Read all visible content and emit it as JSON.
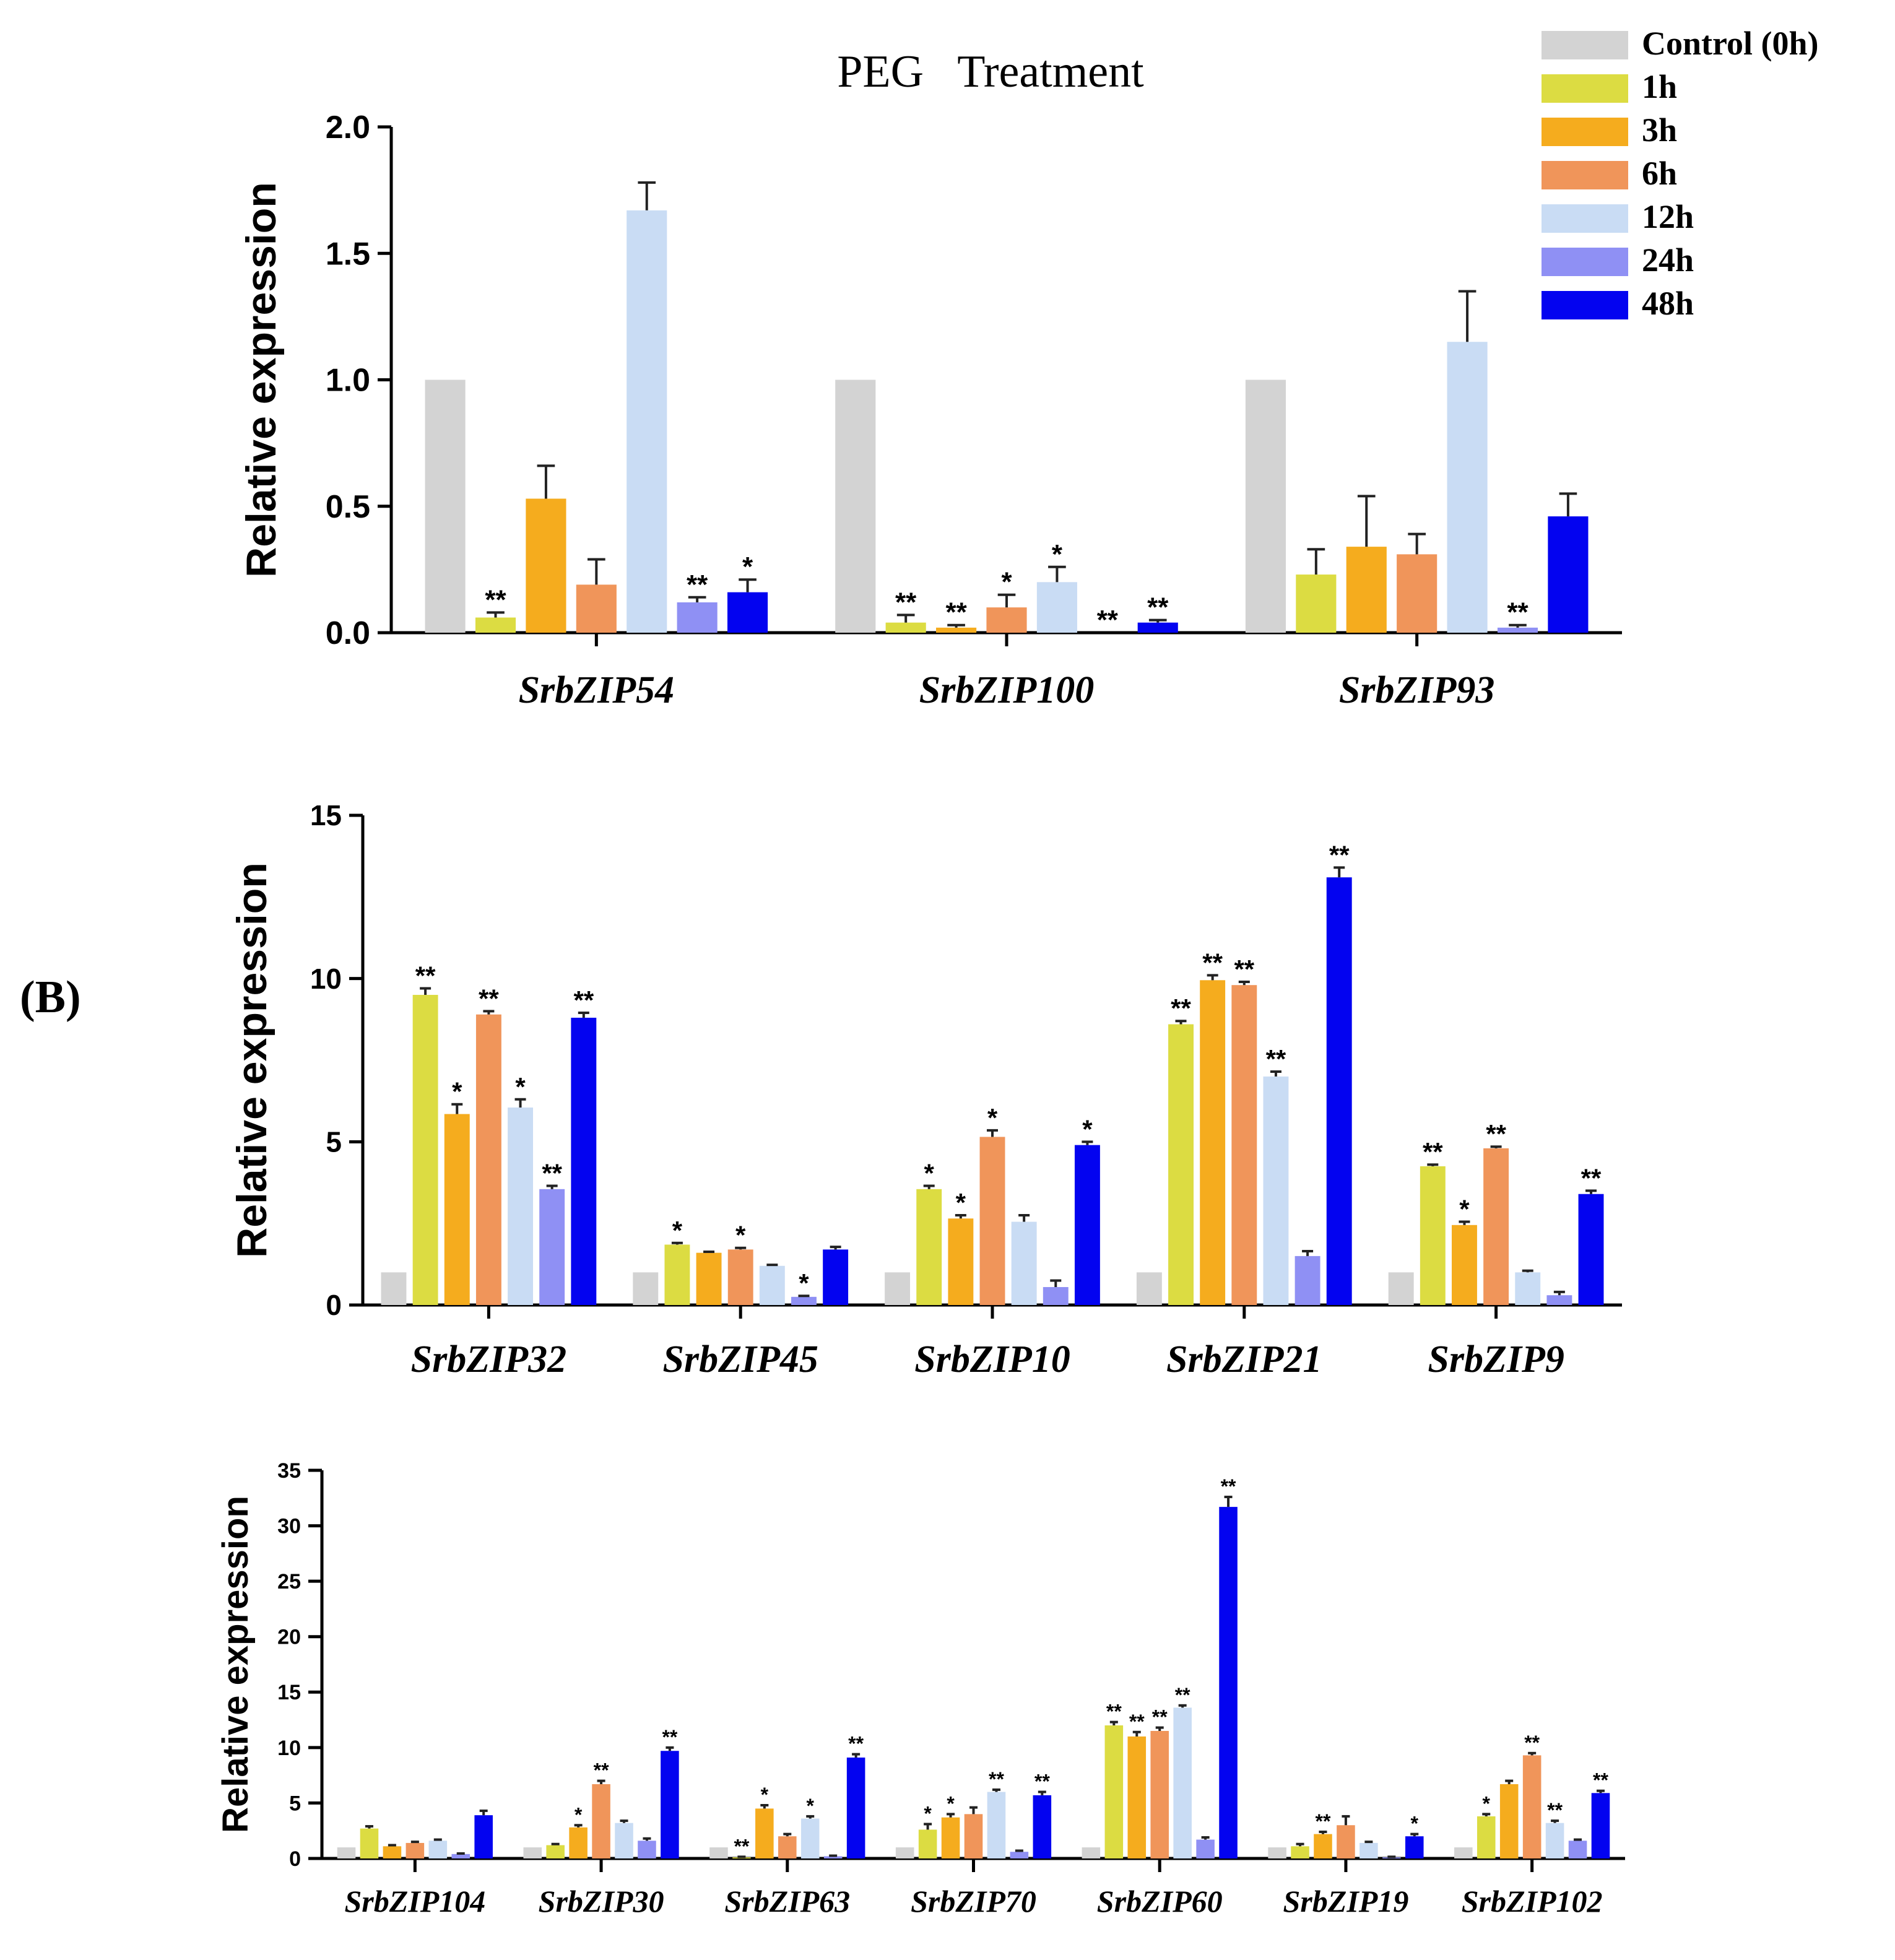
{
  "figure": {
    "title": "PEG   Treatment",
    "panel_label": "(B)"
  },
  "colors": {
    "Control (0h)": "#d3d3d3",
    "1h": "#dcdc42",
    "3h": "#f5ac1e",
    "6h": "#f0955a",
    "12h": "#c9dcf4",
    "24h": "#8f90f4",
    "48h": "#0303f0",
    "axis": "#000000"
  },
  "legend": {
    "items": [
      "Control (0h)",
      "1h",
      "3h",
      "6h",
      "12h",
      "24h",
      "48h"
    ]
  },
  "chart_data": [
    {
      "type": "bar",
      "title": "PEG   Treatment",
      "xlabel": "",
      "ylabel": "Relative expression",
      "ylim": [
        0,
        2.0
      ],
      "yticks": [
        "0.0",
        "0.5",
        "1.0",
        "1.5",
        "2.0"
      ],
      "categories": [
        "SrbZIP54",
        "SrbZIP100",
        "SrbZIP93"
      ],
      "series": [
        {
          "name": "Control (0h)",
          "values": [
            1.0,
            1.0,
            1.0
          ],
          "errors": [
            0,
            0,
            0
          ],
          "sig": [
            "",
            "",
            ""
          ]
        },
        {
          "name": "1h",
          "values": [
            0.06,
            0.04,
            0.23
          ],
          "errors": [
            0.02,
            0.03,
            0.1
          ],
          "sig": [
            "**",
            "**",
            ""
          ]
        },
        {
          "name": "3h",
          "values": [
            0.53,
            0.02,
            0.34
          ],
          "errors": [
            0.13,
            0.01,
            0.2
          ],
          "sig": [
            "",
            "**",
            ""
          ]
        },
        {
          "name": "6h",
          "values": [
            0.19,
            0.1,
            0.31
          ],
          "errors": [
            0.1,
            0.05,
            0.08
          ],
          "sig": [
            "",
            "*",
            ""
          ]
        },
        {
          "name": "12h",
          "values": [
            1.67,
            0.2,
            1.15
          ],
          "errors": [
            0.11,
            0.06,
            0.2
          ],
          "sig": [
            "",
            "*",
            ""
          ]
        },
        {
          "name": "24h",
          "values": [
            0.12,
            0.0,
            0.02
          ],
          "errors": [
            0.02,
            0.0,
            0.01
          ],
          "sig": [
            "**",
            "**",
            "**"
          ]
        },
        {
          "name": "48h",
          "values": [
            0.16,
            0.04,
            0.46
          ],
          "errors": [
            0.05,
            0.01,
            0.09
          ],
          "sig": [
            "*",
            "**",
            ""
          ]
        }
      ]
    },
    {
      "type": "bar",
      "title": "",
      "xlabel": "",
      "ylabel": "Relative expression",
      "ylim": [
        0,
        15
      ],
      "yticks": [
        "0",
        "5",
        "10",
        "15"
      ],
      "categories": [
        "SrbZIP32",
        "SrbZIP45",
        "SrbZIP10",
        "SrbZIP21",
        "SrbZIP9"
      ],
      "series": [
        {
          "name": "Control (0h)",
          "values": [
            1.0,
            1.0,
            1.0,
            1.0,
            1.0
          ],
          "errors": [
            0,
            0,
            0,
            0,
            0
          ],
          "sig": [
            "",
            "",
            "",
            "",
            ""
          ]
        },
        {
          "name": "1h",
          "values": [
            9.5,
            1.85,
            3.55,
            8.6,
            4.25
          ],
          "errors": [
            0.2,
            0.05,
            0.1,
            0.1,
            0.05
          ],
          "sig": [
            "**",
            "*",
            "*",
            "**",
            "**"
          ]
        },
        {
          "name": "3h",
          "values": [
            5.85,
            1.6,
            2.65,
            9.95,
            2.45
          ],
          "errors": [
            0.3,
            0.03,
            0.1,
            0.15,
            0.1
          ],
          "sig": [
            "*",
            "",
            "*",
            "**",
            "*"
          ]
        },
        {
          "name": "6h",
          "values": [
            8.9,
            1.7,
            5.15,
            9.8,
            4.8
          ],
          "errors": [
            0.1,
            0.05,
            0.2,
            0.1,
            0.05
          ],
          "sig": [
            "**",
            "*",
            "*",
            "**",
            "**"
          ]
        },
        {
          "name": "12h",
          "values": [
            6.05,
            1.2,
            2.55,
            7.0,
            1.0
          ],
          "errors": [
            0.25,
            0.03,
            0.2,
            0.15,
            0.05
          ],
          "sig": [
            "*",
            "",
            "",
            "**",
            ""
          ]
        },
        {
          "name": "24h",
          "values": [
            3.55,
            0.25,
            0.55,
            1.5,
            0.3
          ],
          "errors": [
            0.1,
            0.03,
            0.2,
            0.15,
            0.1
          ],
          "sig": [
            "**",
            "*",
            "",
            "",
            ""
          ]
        },
        {
          "name": "48h",
          "values": [
            8.8,
            1.7,
            4.9,
            13.1,
            3.4
          ],
          "errors": [
            0.15,
            0.08,
            0.1,
            0.3,
            0.1
          ],
          "sig": [
            "**",
            "",
            "*",
            "**",
            "**"
          ]
        }
      ]
    },
    {
      "type": "bar",
      "title": "",
      "xlabel": "",
      "ylabel": "Relative expression",
      "ylim": [
        0,
        35
      ],
      "yticks": [
        "0",
        "5",
        "10",
        "15",
        "20",
        "25",
        "30",
        "35"
      ],
      "categories": [
        "SrbZIP104",
        "SrbZIP30",
        "SrbZIP63",
        "SrbZIP70",
        "SrbZIP60",
        "SrbZIP19",
        "SrbZIP102"
      ],
      "series": [
        {
          "name": "Control (0h)",
          "values": [
            1.0,
            1.0,
            1.0,
            1.0,
            1.0,
            1.0,
            1.0
          ],
          "errors": [
            0,
            0,
            0,
            0,
            0,
            0,
            0
          ],
          "sig": [
            "",
            "",
            "",
            "",
            "",
            "",
            ""
          ]
        },
        {
          "name": "1h",
          "values": [
            2.7,
            1.2,
            0.1,
            2.6,
            12.0,
            1.1,
            3.8
          ],
          "errors": [
            0.2,
            0.1,
            0.05,
            0.5,
            0.3,
            0.2,
            0.2
          ],
          "sig": [
            "",
            "",
            "**",
            "*",
            "**",
            "",
            "*"
          ]
        },
        {
          "name": "3h",
          "values": [
            1.1,
            2.8,
            4.5,
            3.7,
            11.0,
            2.2,
            6.7
          ],
          "errors": [
            0.1,
            0.2,
            0.3,
            0.3,
            0.4,
            0.2,
            0.3
          ],
          "sig": [
            "",
            "*",
            "*",
            "*",
            "**",
            "**",
            ""
          ]
        },
        {
          "name": "6h",
          "values": [
            1.4,
            6.7,
            2.0,
            4.0,
            11.5,
            3.0,
            9.3
          ],
          "errors": [
            0.1,
            0.3,
            0.2,
            0.6,
            0.3,
            0.8,
            0.2
          ],
          "sig": [
            "",
            "**",
            "",
            "",
            "**",
            "",
            "**"
          ]
        },
        {
          "name": "12h",
          "values": [
            1.6,
            3.2,
            3.6,
            6.0,
            13.6,
            1.4,
            3.2
          ],
          "errors": [
            0.1,
            0.2,
            0.2,
            0.2,
            0.2,
            0.1,
            0.2
          ],
          "sig": [
            "",
            "",
            "*",
            "**",
            "**",
            "",
            "**"
          ]
        },
        {
          "name": "24h",
          "values": [
            0.4,
            1.6,
            0.2,
            0.6,
            1.7,
            0.1,
            1.6
          ],
          "errors": [
            0.05,
            0.2,
            0.05,
            0.1,
            0.2,
            0.05,
            0.1
          ],
          "sig": [
            "",
            "",
            "",
            "",
            "",
            "",
            ""
          ]
        },
        {
          "name": "48h",
          "values": [
            3.9,
            9.7,
            9.1,
            5.7,
            31.7,
            2.0,
            5.9
          ],
          "errors": [
            0.4,
            0.3,
            0.3,
            0.3,
            0.9,
            0.2,
            0.2
          ],
          "sig": [
            "",
            "**",
            "**",
            "**",
            "**",
            "*",
            "**"
          ]
        }
      ]
    }
  ]
}
